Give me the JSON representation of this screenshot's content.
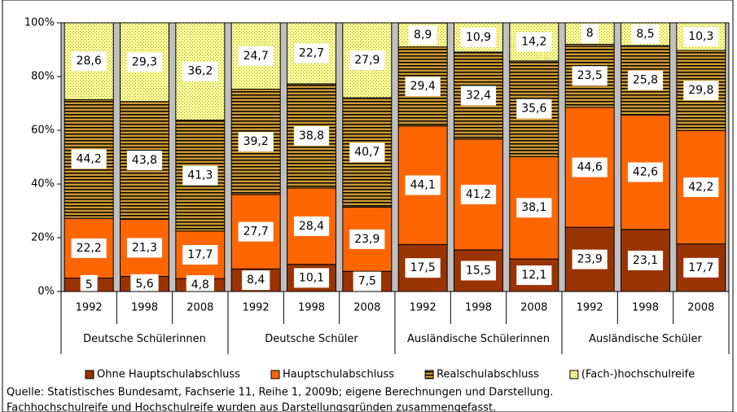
{
  "chart_data": {
    "type": "stacked_bar",
    "categories": [
      "1992",
      "1998",
      "2008",
      "1992",
      "1998",
      "2008",
      "1992",
      "1998",
      "2008",
      "1992",
      "1998",
      "2008"
    ],
    "groups": [
      "Deutsche Schülerinnen",
      "Deutsche Schüler",
      "Ausländische Schülerinnen",
      "Ausländische Schüler"
    ],
    "series": [
      {
        "name": "Ohne Hauptschulabschluss",
        "color": "#993300",
        "pattern": "solid",
        "values": [
          5,
          5.6,
          4.8,
          8.4,
          10.1,
          7.5,
          17.5,
          15.5,
          12.1,
          23.9,
          23.1,
          17.7
        ],
        "value_labels": [
          "5",
          "5,6",
          "4,8",
          "8,4",
          "10,1",
          "7,5",
          "17,5",
          "15,5",
          "12,1",
          "23,9",
          "23,1",
          "17,7"
        ]
      },
      {
        "name": "Hauptschulabschluss",
        "color": "#ff6600",
        "pattern": "solid",
        "values": [
          22.2,
          21.3,
          17.7,
          27.7,
          28.4,
          23.9,
          44.1,
          41.2,
          38.1,
          44.6,
          42.6,
          42.2
        ],
        "value_labels": [
          "22,2",
          "21,3",
          "17,7",
          "27,7",
          "28,4",
          "23,9",
          "44,1",
          "41,2",
          "38,1",
          "44,6",
          "42,6",
          "42,2"
        ]
      },
      {
        "name": "Realschulabschluss",
        "color": "#cc9933",
        "pattern": "stripes",
        "values": [
          44.2,
          43.8,
          41.3,
          39.2,
          38.8,
          40.7,
          29.4,
          32.4,
          35.6,
          23.5,
          25.8,
          29.8
        ],
        "value_labels": [
          "44,2",
          "43,8",
          "41,3",
          "39,2",
          "38,8",
          "40,7",
          "29,4",
          "32,4",
          "35,6",
          "23,5",
          "25,8",
          "29,8"
        ]
      },
      {
        "name": "(Fach-)hochschulreife",
        "color": "#ffff99",
        "pattern": "dots",
        "values": [
          28.6,
          29.3,
          36.2,
          24.7,
          22.7,
          27.9,
          8.9,
          10.9,
          14.2,
          8,
          8.5,
          10.3
        ],
        "value_labels": [
          "28,6",
          "29,3",
          "36,2",
          "24,7",
          "22,7",
          "27,9",
          "8,9",
          "10,9",
          "14,2",
          "8",
          "8,5",
          "10,3"
        ]
      }
    ],
    "ylim": [
      0,
      100
    ],
    "yticks": [
      {
        "value": 0,
        "label": "0%"
      },
      {
        "value": 20,
        "label": "20%"
      },
      {
        "value": 40,
        "label": "40%"
      },
      {
        "value": 60,
        "label": "60%"
      },
      {
        "value": 80,
        "label": "80%"
      },
      {
        "value": 100,
        "label": "100%"
      }
    ],
    "grid": false,
    "legend": "bottom",
    "notes": [
      "Quelle: Statistisches Bundesamt, Fachserie 11, Reihe 1, 2009b; eigene Berechnungen und Darstellung.",
      "Fachhochschulreife und Hochschulreife wurden aus Darstellungsgründen zusammengefasst."
    ]
  }
}
